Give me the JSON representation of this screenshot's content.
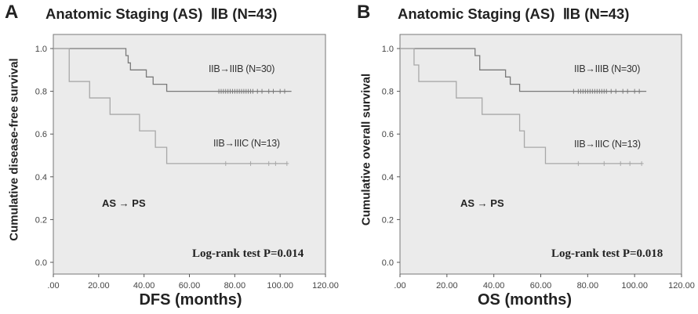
{
  "panels": [
    {
      "letter": "A",
      "title": "Anatomic Staging (AS)  ⅡB (N=43)",
      "ylabel": "Cumulative disease-free survival",
      "xlabel": "DFS (months)",
      "subtitle_annotation": "AS → PS",
      "test_annotation": "Log-rank test P=0.014"
    },
    {
      "letter": "B",
      "title": "Anatomic Staging (AS)  ⅡB (N=43)",
      "ylabel": "Cumulative overall survival",
      "xlabel": "OS (months)",
      "subtitle_annotation": "AS → PS",
      "test_annotation": "Log-rank test P=0.018"
    }
  ],
  "colors": {
    "plot_background": "#ebebeb",
    "curve_IIIB": "#7a7a7a",
    "curve_IIIC": "#a8a8a8",
    "axis": "#555555"
  },
  "chart_data": [
    {
      "type": "line",
      "subtype": "kaplan-meier step",
      "title": "Anatomic Staging (AS)  ⅡB (N=43)",
      "xlabel": "DFS (months)",
      "ylabel": "Cumulative disease-free survival",
      "xlim": [
        0,
        120
      ],
      "ylim": [
        0,
        1.0
      ],
      "x_ticks": [
        ".00",
        "20.00",
        "40.00",
        "60.00",
        "80.00",
        "100.00",
        "120.00"
      ],
      "y_ticks": [
        "0.0",
        "0.2",
        "0.4",
        "0.6",
        "0.8",
        "1.0"
      ],
      "grid": false,
      "series": [
        {
          "name": "IIB→IIIB (N=30)",
          "steps": [
            [
              0,
              1.0
            ],
            [
              32,
              0.967
            ],
            [
              33,
              0.933
            ],
            [
              34,
              0.9
            ],
            [
              41,
              0.867
            ],
            [
              44,
              0.833
            ],
            [
              50,
              0.8
            ],
            [
              105,
              0.8
            ]
          ],
          "censored_x": [
            73,
            74,
            75,
            76,
            77,
            78,
            79,
            80,
            81,
            82,
            83,
            84,
            85,
            86,
            87,
            88,
            90,
            92,
            95,
            97,
            100,
            102
          ]
        },
        {
          "name": "IIB→IIIC (N=13)",
          "steps": [
            [
              0,
              1.0
            ],
            [
              7,
              0.846
            ],
            [
              16,
              0.769
            ],
            [
              25,
              0.692
            ],
            [
              38,
              0.615
            ],
            [
              45,
              0.538
            ],
            [
              50,
              0.462
            ],
            [
              103,
              0.462
            ]
          ],
          "censored_x": [
            76,
            87,
            95,
            98,
            103
          ]
        }
      ],
      "annotations": [
        "AS → PS",
        "Log-rank test P=0.014"
      ]
    },
    {
      "type": "line",
      "subtype": "kaplan-meier step",
      "title": "Anatomic Staging (AS)  ⅡB (N=43)",
      "xlabel": "OS (months)",
      "ylabel": "Cumulative overall survival",
      "xlim": [
        0,
        120
      ],
      "ylim": [
        0,
        1.0
      ],
      "x_ticks": [
        ".00",
        "20.00",
        "40.00",
        "60.00",
        "80.00",
        "100.00",
        "120.00"
      ],
      "y_ticks": [
        "0.0",
        "0.2",
        "0.4",
        "0.6",
        "0.8",
        "1.0"
      ],
      "grid": false,
      "series": [
        {
          "name": "IIB→IIIB (N=30)",
          "steps": [
            [
              0,
              1.0
            ],
            [
              32,
              0.967
            ],
            [
              34,
              0.9
            ],
            [
              45,
              0.867
            ],
            [
              47,
              0.833
            ],
            [
              51,
              0.8
            ],
            [
              105,
              0.8
            ]
          ],
          "censored_x": [
            74,
            76,
            77,
            78,
            79,
            80,
            81,
            82,
            83,
            84,
            85,
            86,
            87,
            88,
            90,
            92,
            95,
            97,
            100,
            102
          ]
        },
        {
          "name": "IIB→IIIC (N=13)",
          "steps": [
            [
              0,
              1.0
            ],
            [
              6,
              0.923
            ],
            [
              8,
              0.846
            ],
            [
              24,
              0.769
            ],
            [
              35,
              0.692
            ],
            [
              51,
              0.615
            ],
            [
              53,
              0.538
            ],
            [
              62,
              0.462
            ],
            [
              103,
              0.462
            ]
          ],
          "censored_x": [
            76,
            87,
            94,
            98,
            103
          ]
        }
      ],
      "annotations": [
        "AS → PS",
        "Log-rank test P=0.018"
      ]
    }
  ]
}
